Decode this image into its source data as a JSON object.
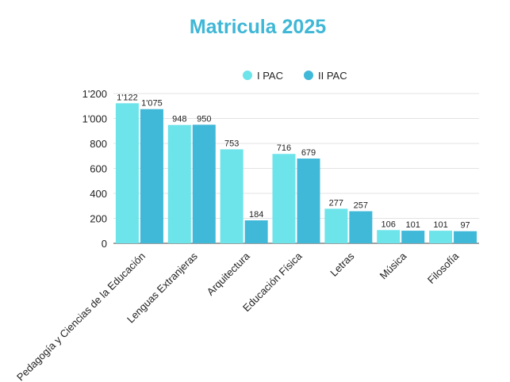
{
  "chart_data": {
    "type": "bar",
    "title": "Matricula 2025",
    "categories": [
      "Pedagogía y Ciencias de la Educación",
      "Lenguas Extranjeras",
      "Arquitectura",
      "Educación Física",
      "Letras",
      "Música",
      "Filosofía"
    ],
    "series": [
      {
        "name": "I PAC",
        "values": [
          1122,
          948,
          753,
          716,
          277,
          106,
          101
        ],
        "labels": [
          "1'122",
          "948",
          "753",
          "716",
          "277",
          "106",
          "101"
        ],
        "color": "#6de4ea"
      },
      {
        "name": "II PAC",
        "values": [
          1075,
          950,
          184,
          679,
          257,
          101,
          97
        ],
        "labels": [
          "1'075",
          "950",
          "184",
          "679",
          "257",
          "101",
          "97"
        ],
        "color": "#40b8d8"
      }
    ],
    "yticks": [
      0,
      200,
      400,
      600,
      800,
      1000,
      1200
    ],
    "ytick_labels": [
      "0",
      "200",
      "400",
      "600",
      "800",
      "1'000",
      "1'200"
    ],
    "ylim": [
      0,
      1200
    ],
    "grid": true,
    "legend_position": "top-center"
  }
}
